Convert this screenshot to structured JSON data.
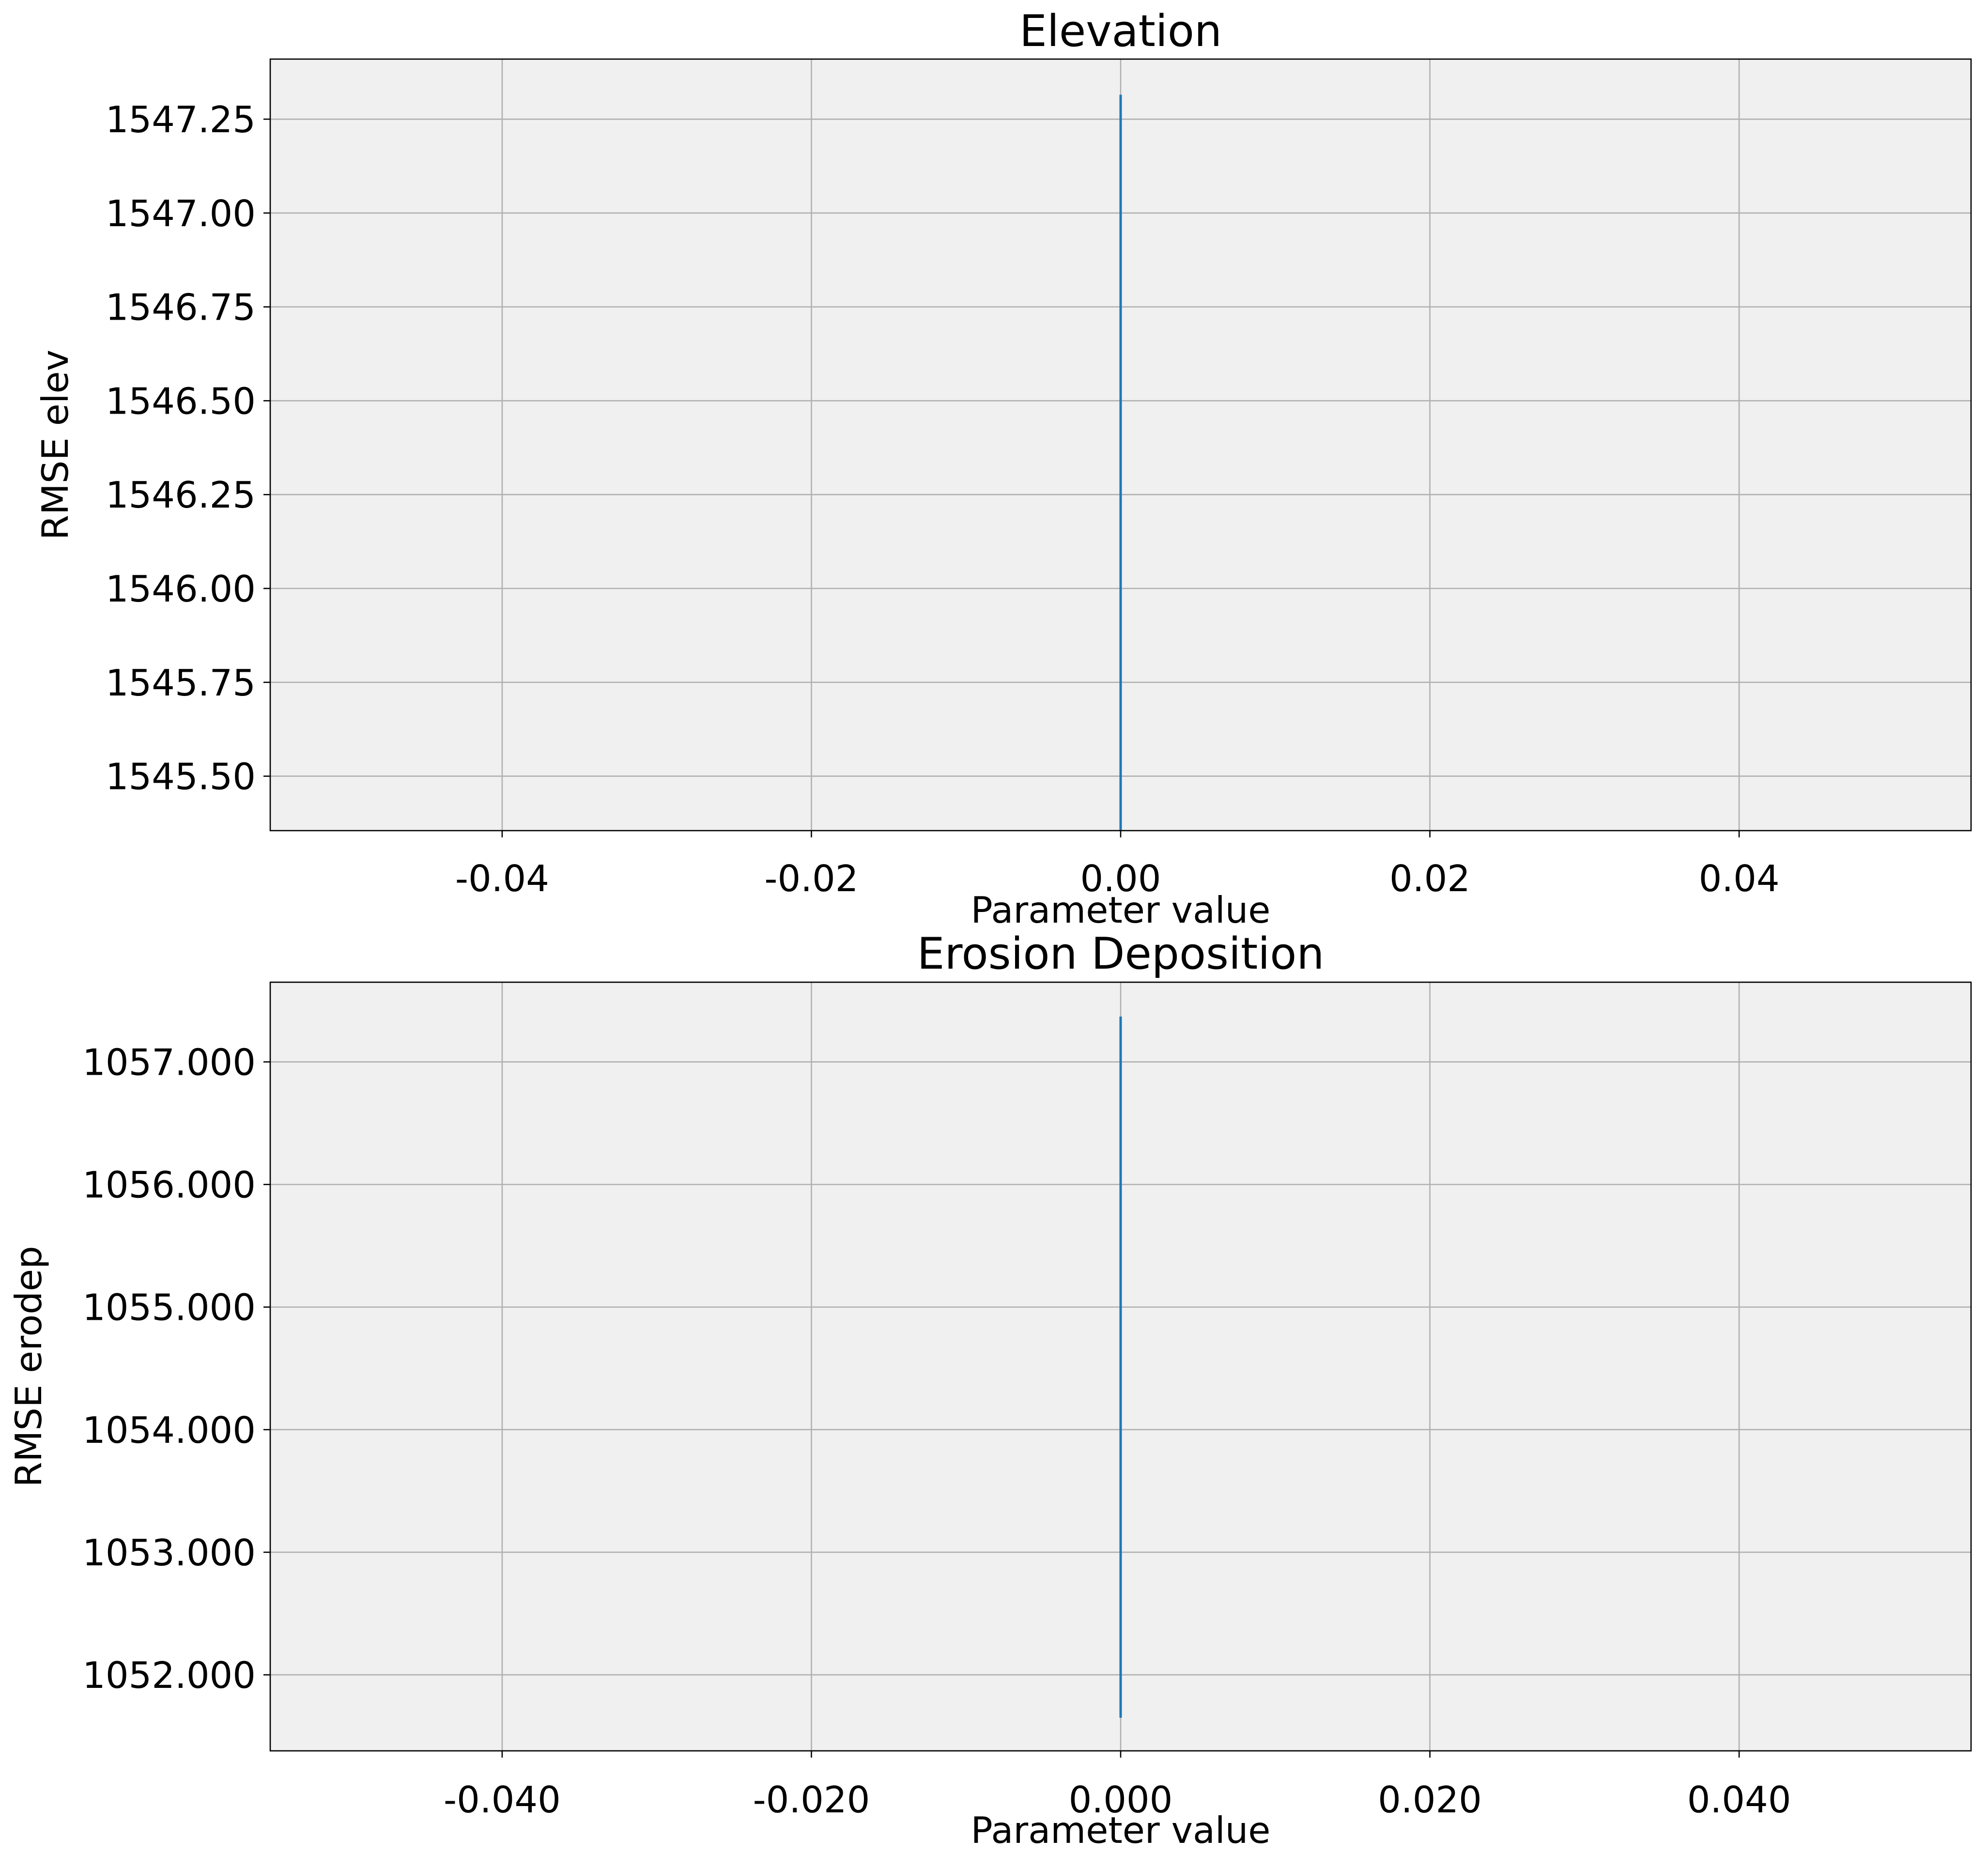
{
  "chart_data": [
    {
      "type": "line",
      "title": "Elevation",
      "xlabel": "Parameter value",
      "ylabel": "RMSE elev",
      "xlim": [
        -0.055,
        0.055
      ],
      "ylim": [
        1545.355,
        1547.41
      ],
      "xticks": [
        -0.04,
        -0.02,
        0.0,
        0.02,
        0.04
      ],
      "xtick_labels": [
        "-0.04",
        "-0.02",
        "0.00",
        "0.02",
        "0.04"
      ],
      "yticks": [
        1545.5,
        1545.75,
        1546.0,
        1546.25,
        1546.5,
        1546.75,
        1547.0,
        1547.25
      ],
      "ytick_labels": [
        "1545.50",
        "1545.75",
        "1546.00",
        "1546.25",
        "1546.50",
        "1546.75",
        "1547.00",
        "1547.25"
      ],
      "grid": true,
      "series_color": "#1f77b4",
      "series": [
        {
          "x": [
            0.0,
            0.0
          ],
          "y": [
            1545.355,
            1547.315
          ]
        }
      ]
    },
    {
      "type": "line",
      "title": "Erosion Deposition",
      "xlabel": "Parameter value",
      "ylabel": "RMSE erodep",
      "xlim": [
        -0.055,
        0.055
      ],
      "ylim": [
        1051.38,
        1057.65
      ],
      "xticks": [
        -0.04,
        -0.02,
        0.0,
        0.02,
        0.04
      ],
      "xtick_labels": [
        "-0.040",
        "-0.020",
        "0.000",
        "0.020",
        "0.040"
      ],
      "yticks": [
        1052,
        1053,
        1054,
        1055,
        1056,
        1057
      ],
      "ytick_labels": [
        "1052.000",
        "1053.000",
        "1054.000",
        "1055.000",
        "1056.000",
        "1057.000"
      ],
      "grid": true,
      "series_color": "#1f77b4",
      "series": [
        {
          "x": [
            0.0,
            0.0
          ],
          "y": [
            1051.65,
            1057.37
          ]
        }
      ]
    }
  ]
}
